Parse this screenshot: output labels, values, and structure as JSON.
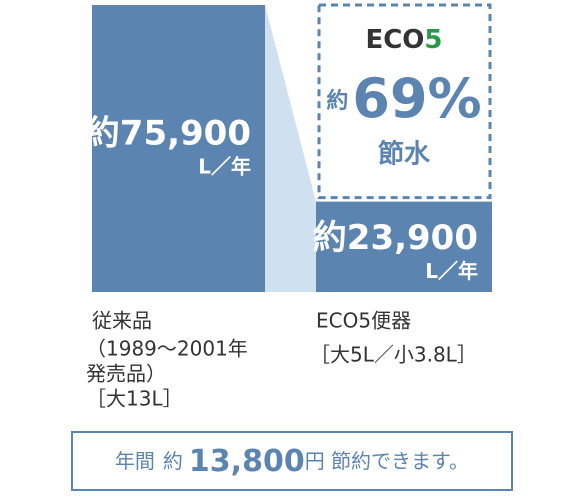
{
  "chart_data": {
    "type": "bar",
    "categories": [
      "従来品",
      "ECO5便器"
    ],
    "category_details": [
      [
        "（1989〜2001年",
        "発売品）",
        "［大13L］"
      ],
      [
        "［大5L／小3.8L］"
      ]
    ],
    "values": [
      75900,
      23900
    ],
    "value_labels": [
      "約75,900",
      "約23,900"
    ],
    "unit": "L／年",
    "color": "#5b84b1",
    "savings": {
      "brand": [
        "ECO",
        "5"
      ],
      "prefix": "約",
      "label": "69%",
      "text": "節水"
    },
    "footer": [
      "年間",
      "約",
      "13,800",
      "円 節約できます。"
    ]
  }
}
